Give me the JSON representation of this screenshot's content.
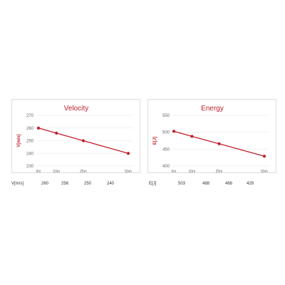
{
  "chart_data": [
    {
      "type": "line",
      "title": "Velocity",
      "xlabel": "",
      "ylabel": "V[m/s]",
      "categories": [
        "0m",
        "10m",
        "25m",
        "50m"
      ],
      "x_positions": [
        0,
        10,
        25,
        50
      ],
      "series": [
        {
          "values": [
            260,
            256,
            250,
            240
          ]
        }
      ],
      "yticks": [
        270,
        260,
        250,
        240,
        230
      ],
      "ylim": [
        230,
        270
      ],
      "grid": true,
      "color": "#c0202c",
      "table_label": "V[m/s]",
      "table_values": [
        "260",
        "256",
        "250",
        "240"
      ]
    },
    {
      "type": "line",
      "title": "Energy",
      "xlabel": "",
      "ylabel": "E[J]",
      "categories": [
        "0m",
        "10m",
        "25m",
        "50m"
      ],
      "x_positions": [
        0,
        10,
        25,
        50
      ],
      "series": [
        {
          "values": [
            503,
            488,
            466,
            429
          ]
        }
      ],
      "yticks": [
        550,
        500,
        450,
        400
      ],
      "ylim": [
        400,
        550
      ],
      "grid": true,
      "color": "#c0202c",
      "table_label": "E[J]",
      "table_values": [
        "503",
        "488",
        "466",
        "429"
      ]
    }
  ]
}
